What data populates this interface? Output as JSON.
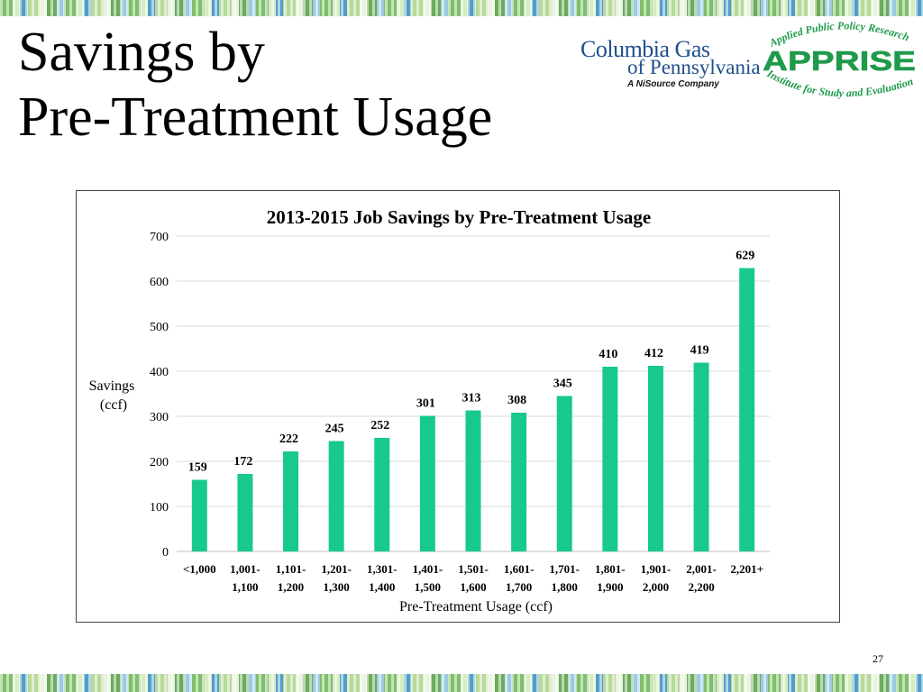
{
  "slide": {
    "title_line1": "Savings by",
    "title_line2": "Pre-Treatment Usage",
    "page_number": "27"
  },
  "logos": {
    "columbia_gas_line1": "Columbia Gas",
    "columbia_gas_line2": "of Pennsylvania",
    "columbia_gas_tagline": "A NiSource Company",
    "apprise_top_arc": "Applied Public Policy Research",
    "apprise_name": "APPRISE",
    "apprise_bottom_arc": "Institute for Study and Evaluation"
  },
  "colors": {
    "bar": "#17c98f",
    "title": "#000000",
    "columbia_blue": "#1f4e8c",
    "apprise_green": "#1e9a4a"
  },
  "chart_data": {
    "type": "bar",
    "title": "2013-2015 Job Savings by Pre-Treatment Usage",
    "xlabel": "Pre-Treatment Usage (ccf)",
    "ylabel_line1": "Savings",
    "ylabel_line2": "(ccf)",
    "ylim": [
      0,
      700
    ],
    "yticks": [
      0,
      100,
      200,
      300,
      400,
      500,
      600,
      700
    ],
    "grid": true,
    "categories": [
      [
        "<1,000"
      ],
      [
        "1,001-",
        "1,100"
      ],
      [
        "1,101-",
        "1,200"
      ],
      [
        "1,201-",
        "1,300"
      ],
      [
        "1,301-",
        "1,400"
      ],
      [
        "1,401-",
        "1,500"
      ],
      [
        "1,501-",
        "1,600"
      ],
      [
        "1,601-",
        "1,700"
      ],
      [
        "1,701-",
        "1,800"
      ],
      [
        "1,801-",
        "1,900"
      ],
      [
        "1,901-",
        "2,000"
      ],
      [
        "2,001-",
        "2,200"
      ],
      [
        "2,201+"
      ]
    ],
    "values": [
      159,
      172,
      222,
      245,
      252,
      301,
      313,
      308,
      345,
      410,
      412,
      419,
      629
    ]
  }
}
